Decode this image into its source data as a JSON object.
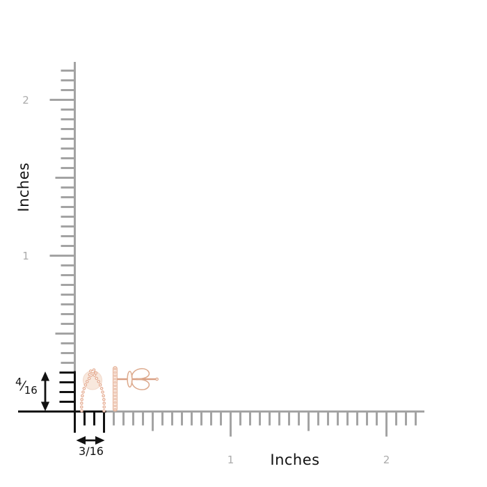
{
  "colors": {
    "background": "#ffffff",
    "ruler_gray": "#a3a3a3",
    "tick_label_gray": "#ababab",
    "ink": "#111111",
    "rose_gold": "#e6af96",
    "rose_gold_deep": "#d9a084",
    "rose_gold_pale": "#f8e6da",
    "rose_gold_outline": "#dca88b"
  },
  "rulers": {
    "unit": "Inches",
    "ticks_per_inch": 16,
    "length_inches": 2.25,
    "vertical": {
      "title": "Inches",
      "tick_labels": [
        {
          "text": "1",
          "inch": 1
        },
        {
          "text": "2",
          "inch": 2
        }
      ]
    },
    "horizontal": {
      "title": "Inches",
      "tick_labels": [
        {
          "text": "1",
          "inch": 1
        },
        {
          "text": "2",
          "inch": 2
        }
      ]
    }
  },
  "measurements": {
    "height": {
      "numerator": "4",
      "denominator": "16",
      "slash": "⁄",
      "label": "4/16",
      "inches": 0.25
    },
    "width": {
      "label": "3/16",
      "inches": 0.1875
    }
  },
  "product": {
    "front_view": "wishbone-stud-earring-front",
    "side_view": "wishbone-stud-earring-side"
  }
}
